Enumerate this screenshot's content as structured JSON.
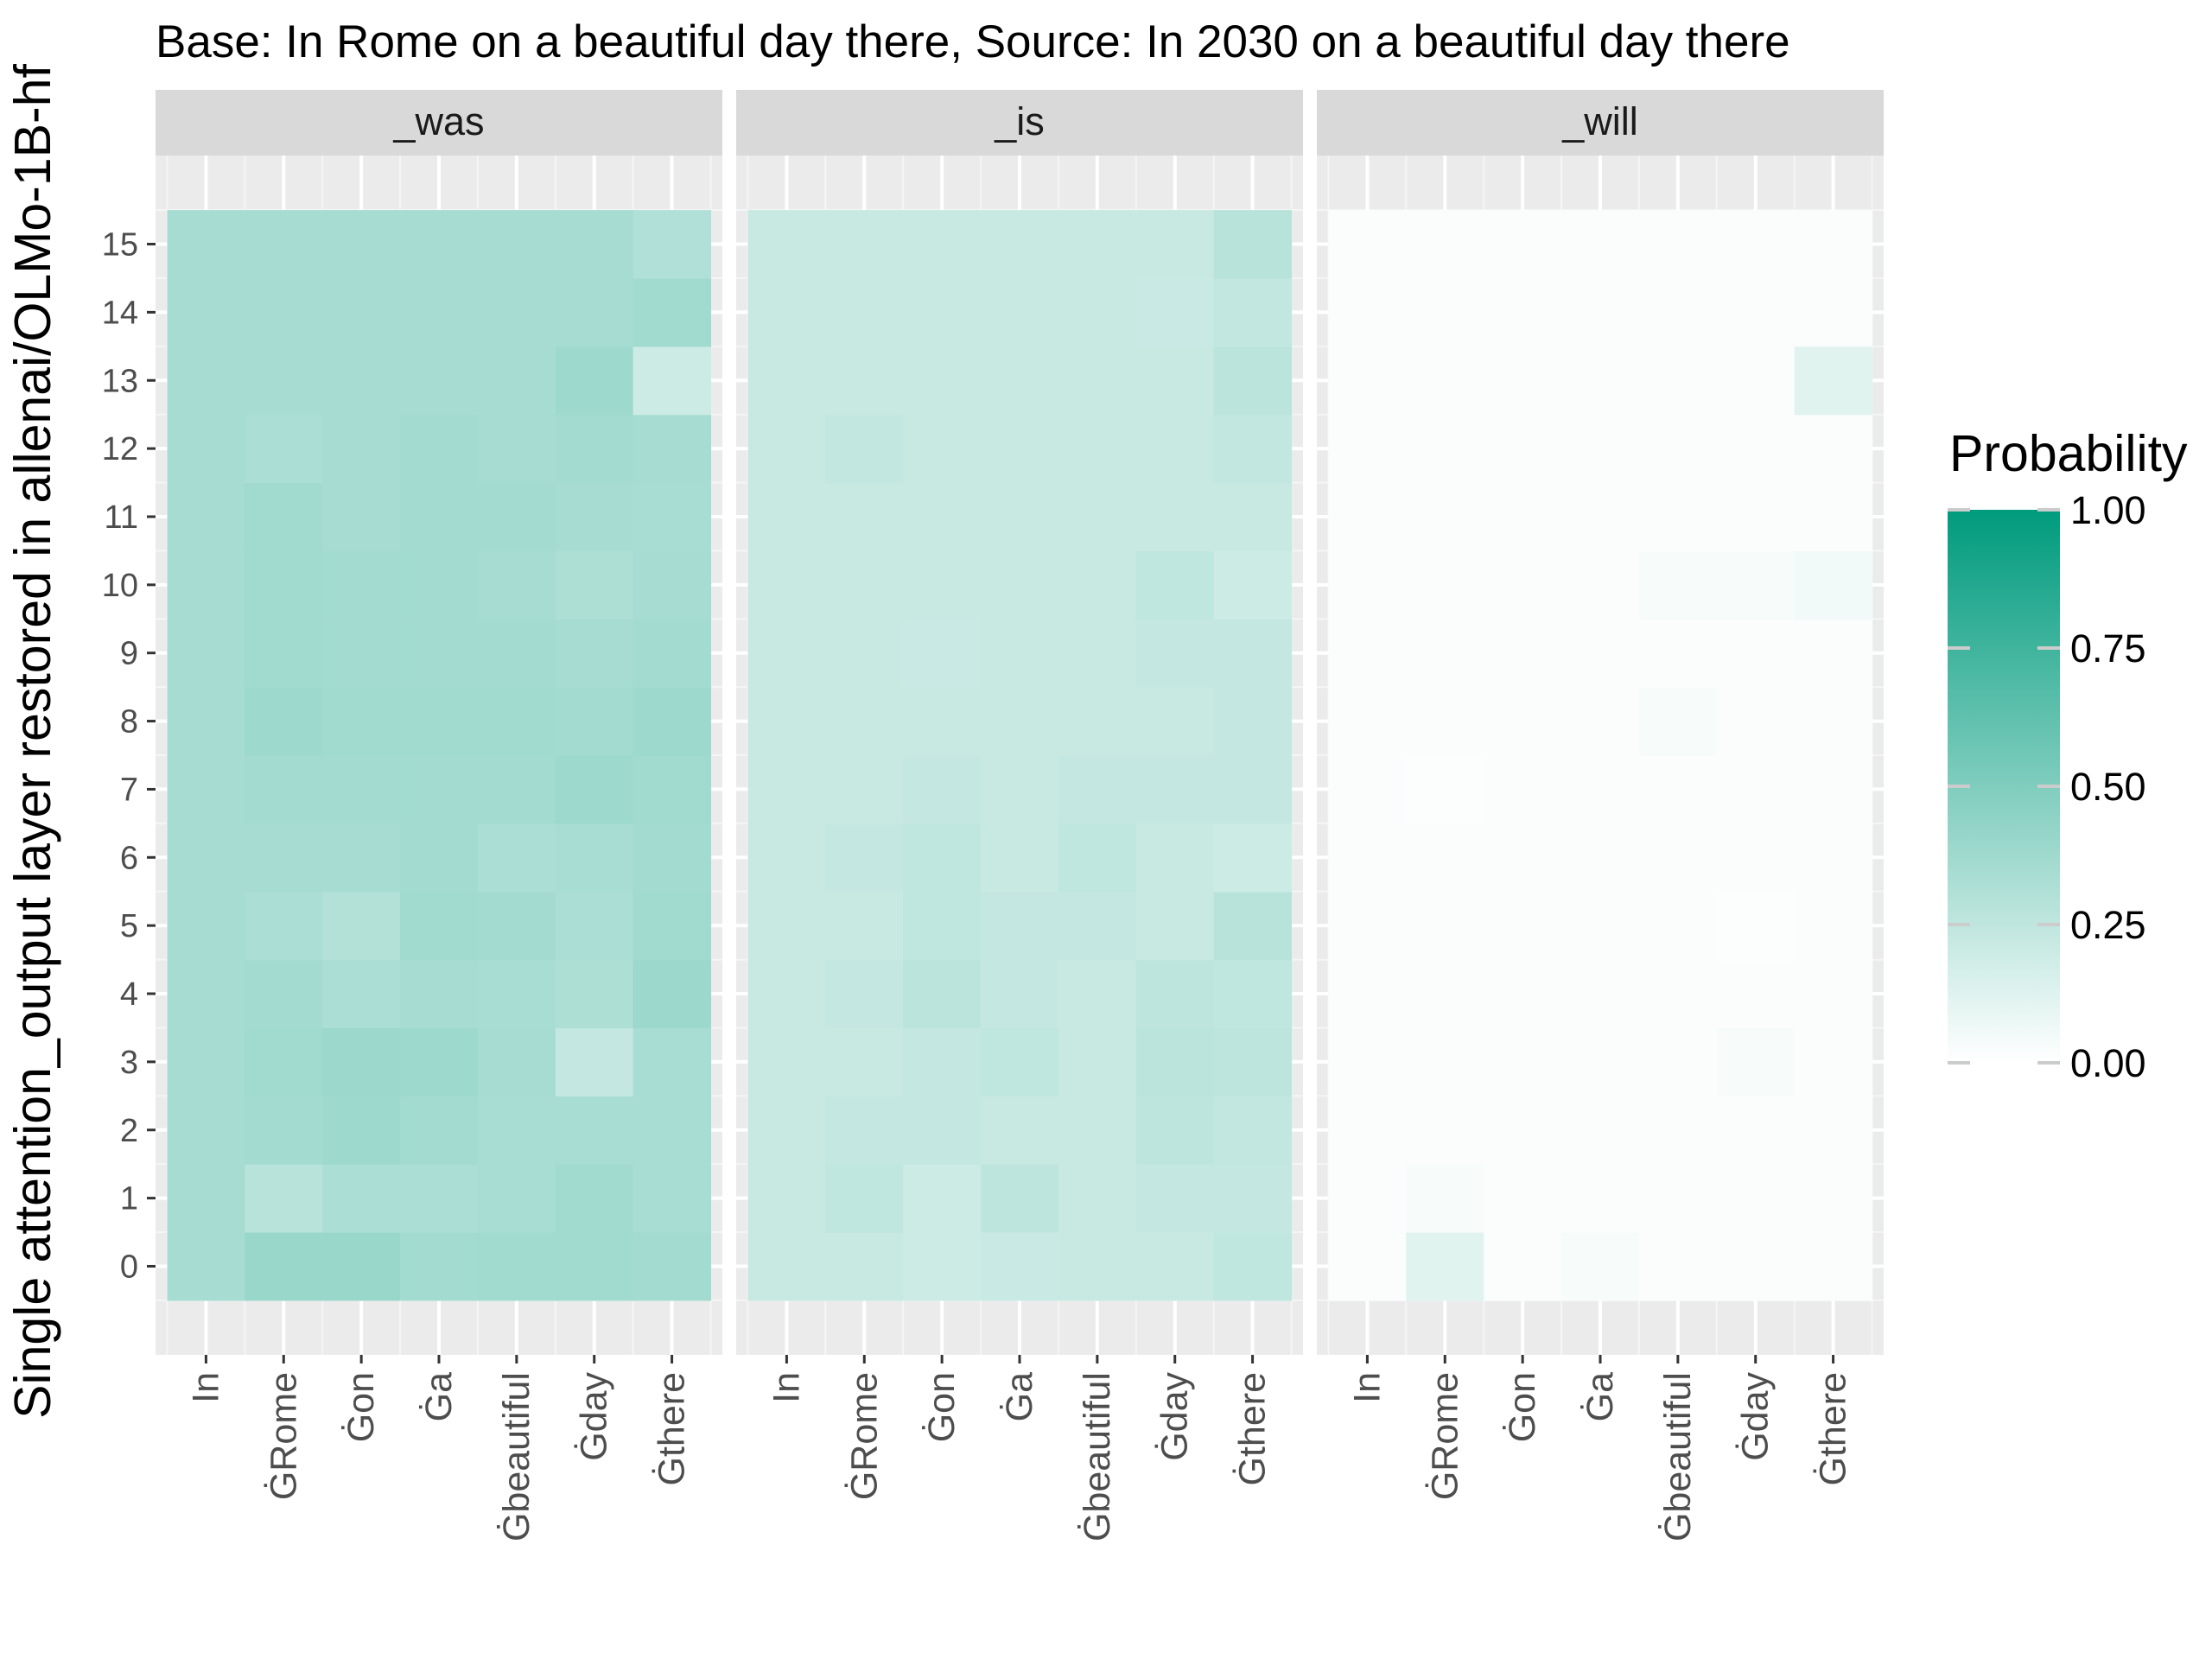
{
  "chart_data": {
    "type": "heatmap",
    "title": "Base: In Rome on a beautiful day there, Source: In 2030 on a beautiful day there",
    "xlabel": "",
    "ylabel": "Single attention_output layer restored in allenai/OLMo-1B-hf",
    "x_tokens": [
      "In",
      "ĠRome",
      "Ġon",
      "Ġa",
      "Ġbeautiful",
      "Ġday",
      "Ġthere"
    ],
    "y_layers": [
      "0",
      "1",
      "2",
      "3",
      "4",
      "5",
      "6",
      "7",
      "8",
      "9",
      "10",
      "11",
      "12",
      "13",
      "14",
      "15"
    ],
    "color_scale": {
      "low": "#ffffff",
      "high": "#009b7d",
      "limits": [
        0,
        1
      ]
    },
    "legend": {
      "title": "Probability",
      "ticks": [
        "1.00",
        "0.75",
        "0.50",
        "0.25",
        "0.00"
      ],
      "tick_values": [
        1.0,
        0.75,
        0.5,
        0.25,
        0.0
      ]
    },
    "panels": [
      {
        "name": "_was",
        "values": [
          [
            0.35,
            0.4,
            0.4,
            0.36,
            0.37,
            0.37,
            0.36
          ],
          [
            0.35,
            0.28,
            0.33,
            0.33,
            0.34,
            0.37,
            0.34
          ],
          [
            0.35,
            0.36,
            0.38,
            0.36,
            0.34,
            0.34,
            0.34
          ],
          [
            0.35,
            0.37,
            0.39,
            0.38,
            0.35,
            0.23,
            0.34
          ],
          [
            0.35,
            0.36,
            0.33,
            0.35,
            0.34,
            0.32,
            0.39
          ],
          [
            0.35,
            0.33,
            0.3,
            0.37,
            0.36,
            0.33,
            0.37
          ],
          [
            0.35,
            0.35,
            0.35,
            0.36,
            0.33,
            0.34,
            0.36
          ],
          [
            0.35,
            0.36,
            0.36,
            0.36,
            0.36,
            0.38,
            0.37
          ],
          [
            0.35,
            0.38,
            0.37,
            0.37,
            0.37,
            0.36,
            0.38
          ],
          [
            0.35,
            0.37,
            0.36,
            0.36,
            0.36,
            0.35,
            0.36
          ],
          [
            0.35,
            0.37,
            0.36,
            0.36,
            0.35,
            0.32,
            0.35
          ],
          [
            0.35,
            0.37,
            0.35,
            0.36,
            0.36,
            0.35,
            0.34
          ],
          [
            0.35,
            0.33,
            0.35,
            0.36,
            0.35,
            0.36,
            0.35
          ],
          [
            0.35,
            0.35,
            0.35,
            0.35,
            0.35,
            0.38,
            0.2
          ],
          [
            0.35,
            0.35,
            0.35,
            0.35,
            0.35,
            0.35,
            0.37
          ],
          [
            0.35,
            0.35,
            0.35,
            0.35,
            0.35,
            0.35,
            0.31
          ]
        ]
      },
      {
        "name": "_is",
        "values": [
          [
            0.22,
            0.22,
            0.2,
            0.21,
            0.22,
            0.22,
            0.25
          ],
          [
            0.22,
            0.25,
            0.2,
            0.26,
            0.22,
            0.23,
            0.23
          ],
          [
            0.22,
            0.23,
            0.23,
            0.22,
            0.22,
            0.26,
            0.24
          ],
          [
            0.22,
            0.22,
            0.23,
            0.25,
            0.22,
            0.27,
            0.26
          ],
          [
            0.22,
            0.23,
            0.27,
            0.23,
            0.22,
            0.26,
            0.25
          ],
          [
            0.22,
            0.22,
            0.25,
            0.23,
            0.23,
            0.22,
            0.28
          ],
          [
            0.22,
            0.23,
            0.25,
            0.22,
            0.25,
            0.22,
            0.2
          ],
          [
            0.22,
            0.22,
            0.23,
            0.22,
            0.23,
            0.23,
            0.23
          ],
          [
            0.22,
            0.22,
            0.22,
            0.22,
            0.22,
            0.22,
            0.23
          ],
          [
            0.22,
            0.22,
            0.21,
            0.22,
            0.22,
            0.23,
            0.23
          ],
          [
            0.22,
            0.22,
            0.22,
            0.22,
            0.22,
            0.25,
            0.2
          ],
          [
            0.22,
            0.22,
            0.22,
            0.22,
            0.22,
            0.22,
            0.22
          ],
          [
            0.22,
            0.24,
            0.22,
            0.22,
            0.22,
            0.22,
            0.24
          ],
          [
            0.22,
            0.22,
            0.22,
            0.22,
            0.22,
            0.22,
            0.27
          ],
          [
            0.22,
            0.22,
            0.22,
            0.22,
            0.22,
            0.21,
            0.24
          ],
          [
            0.22,
            0.22,
            0.22,
            0.22,
            0.22,
            0.22,
            0.28
          ]
        ]
      },
      {
        "name": "_will",
        "values": [
          [
            0.02,
            0.12,
            0.02,
            0.03,
            0.02,
            0.02,
            0.02
          ],
          [
            0.02,
            0.03,
            0.02,
            0.02,
            0.02,
            0.02,
            0.02
          ],
          [
            0.02,
            0.02,
            0.02,
            0.02,
            0.02,
            0.02,
            0.02
          ],
          [
            0.02,
            0.02,
            0.02,
            0.02,
            0.02,
            0.03,
            0.02
          ],
          [
            0.02,
            0.02,
            0.02,
            0.02,
            0.02,
            0.02,
            0.02
          ],
          [
            0.02,
            0.02,
            0.02,
            0.02,
            0.02,
            0.01,
            0.02
          ],
          [
            0.02,
            0.02,
            0.02,
            0.02,
            0.02,
            0.02,
            0.02
          ],
          [
            0.02,
            0.01,
            0.02,
            0.02,
            0.02,
            0.02,
            0.02
          ],
          [
            0.02,
            0.02,
            0.02,
            0.02,
            0.03,
            0.02,
            0.02
          ],
          [
            0.02,
            0.02,
            0.02,
            0.02,
            0.02,
            0.02,
            0.02
          ],
          [
            0.02,
            0.02,
            0.02,
            0.02,
            0.03,
            0.03,
            0.05
          ],
          [
            0.02,
            0.02,
            0.02,
            0.02,
            0.02,
            0.02,
            0.02
          ],
          [
            0.02,
            0.02,
            0.02,
            0.02,
            0.02,
            0.02,
            0.02
          ],
          [
            0.02,
            0.02,
            0.02,
            0.02,
            0.02,
            0.02,
            0.12
          ],
          [
            0.02,
            0.02,
            0.02,
            0.02,
            0.02,
            0.02,
            0.02
          ],
          [
            0.02,
            0.02,
            0.02,
            0.02,
            0.02,
            0.02,
            0.02
          ]
        ]
      }
    ]
  }
}
